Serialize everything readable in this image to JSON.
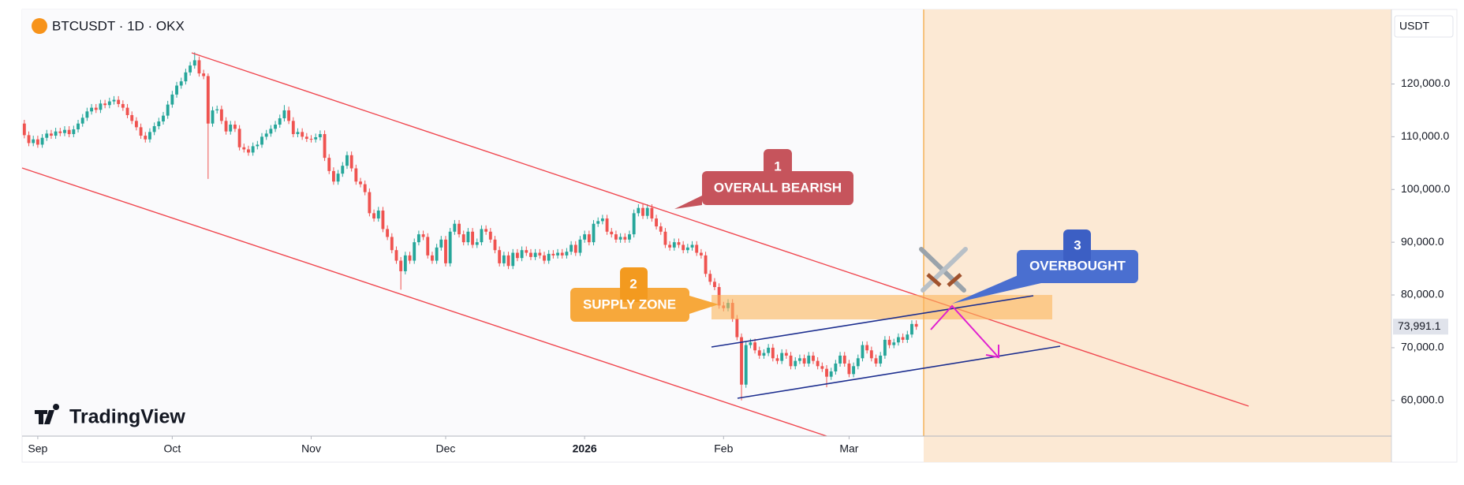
{
  "chart_data": {
    "type": "candlestick",
    "title": "BTCUSDT · 1D · OKX",
    "price_unit": "USDT",
    "watermark": "TradingView",
    "up_color": "#26a69a",
    "down_color": "#ef5350",
    "last_value_label": "73,991.1",
    "annotations": [
      {
        "number": "1",
        "text": "OVERALL BEARISH"
      },
      {
        "number": "2",
        "text": "SUPPLY ZONE"
      },
      {
        "number": "3",
        "text": "OVERBOUGHT"
      }
    ],
    "xlim": [
      -0.5,
      305
    ],
    "ylim": [
      53240,
      134130
    ],
    "xticks": [
      {
        "value": 3,
        "label": "Sep"
      },
      {
        "value": 33,
        "label": "Oct"
      },
      {
        "value": 64,
        "label": "Nov"
      },
      {
        "value": 94,
        "label": "Dec"
      },
      {
        "value": 125,
        "label": "2026"
      },
      {
        "value": 156,
        "label": "Feb"
      },
      {
        "value": 184,
        "label": "Mar"
      }
    ],
    "yticks": [
      {
        "value": 60000,
        "label": "60,000.0"
      },
      {
        "value": 70000,
        "label": "70,000.0"
      },
      {
        "value": 80000,
        "label": "80,000.0"
      },
      {
        "value": 90000,
        "label": "90,000.0"
      },
      {
        "value": 100000,
        "label": "100,000.0"
      },
      {
        "value": 110000,
        "label": "110,000.0"
      },
      {
        "value": 120000,
        "label": "120,000.0"
      }
    ],
    "open": [
      112500,
      110300,
      108800,
      109500,
      108500,
      109800,
      110600,
      110200,
      111000,
      110700,
      111300,
      110500,
      111400,
      112500,
      113600,
      114800,
      115500,
      115100,
      116300,
      116000,
      116700,
      117000,
      116200,
      115500,
      114100,
      113000,
      111800,
      110200,
      109500,
      110900,
      112000,
      112900,
      114000,
      116100,
      118000,
      119700,
      120500,
      122200,
      123500,
      124500,
      122000,
      121500,
      112500,
      115000,
      115200,
      113000,
      111000,
      112300,
      111500,
      108000,
      107600,
      107000,
      108200,
      108500,
      110000,
      110600,
      111500,
      112300,
      113500,
      115000,
      113000,
      110500,
      110900,
      110000,
      109600,
      109500,
      109900,
      110500,
      106000,
      103500,
      101500,
      103000,
      104500,
      106500,
      104000,
      101500,
      101000,
      99500,
      95500,
      94500,
      96000,
      92500,
      91000,
      88500,
      86500,
      84500,
      87500,
      86500,
      90000,
      91500,
      91000,
      87500,
      86500,
      89000,
      90500,
      86000,
      92000,
      93500,
      91500,
      90000,
      92000,
      89500,
      90000,
      92500,
      92000,
      90500,
      88500,
      86000,
      87500,
      85500,
      88000,
      87000,
      88500,
      88000,
      87200,
      88000,
      87500,
      86500,
      87800,
      87500,
      88000,
      87500,
      88200,
      89500,
      88000,
      90500,
      91500,
      90000,
      93500,
      94000,
      94500,
      92000,
      91500,
      90500,
      91000,
      90500,
      91500,
      95500,
      96500,
      95000,
      96500,
      94500,
      93000,
      92000,
      89500,
      89000,
      90000,
      89500,
      88500,
      89000,
      89500,
      88000,
      87500,
      84000,
      82500,
      81500,
      78000,
      77500,
      78500,
      75500,
      72000,
      63000,
      70500,
      71000,
      69500,
      68500,
      69000,
      70000,
      68000,
      67500,
      69000,
      68500,
      66500,
      67500,
      68000,
      67000,
      68500,
      67500,
      66500,
      66000,
      64500,
      65500,
      67000,
      68500,
      67000,
      65000,
      66500,
      68000,
      70500,
      69500,
      68000,
      67000,
      68500,
      71500,
      70500,
      71000,
      72000,
      71500,
      72500,
      74500
    ],
    "high": [
      113200,
      111000,
      110200,
      110200,
      110500,
      111300,
      111300,
      111700,
      111700,
      112000,
      112000,
      112100,
      113200,
      114300,
      115500,
      116200,
      116200,
      117000,
      117000,
      117400,
      117700,
      117700,
      116900,
      116200,
      114800,
      113700,
      112500,
      110900,
      111600,
      112700,
      113600,
      114700,
      116800,
      118700,
      120400,
      121200,
      122900,
      124200,
      126000,
      125200,
      122700,
      122000,
      115700,
      115900,
      115900,
      113700,
      113000,
      113000,
      112200,
      108700,
      108300,
      108900,
      109200,
      110700,
      111300,
      112200,
      113000,
      114200,
      116000,
      115700,
      113700,
      111600,
      111600,
      110700,
      110300,
      110600,
      111200,
      111200,
      106700,
      104200,
      103700,
      105200,
      107200,
      107200,
      104700,
      102200,
      101700,
      100200,
      96200,
      96700,
      96700,
      93200,
      91700,
      89200,
      87200,
      88200,
      88200,
      90700,
      92200,
      92200,
      91700,
      88200,
      89700,
      91200,
      91200,
      92700,
      94200,
      94200,
      92200,
      92700,
      92700,
      90700,
      93200,
      93200,
      92700,
      91200,
      89200,
      88200,
      88200,
      88700,
      88700,
      89200,
      89200,
      88700,
      88700,
      88700,
      88200,
      88500,
      88500,
      88700,
      88700,
      88900,
      90200,
      90200,
      91200,
      92200,
      92200,
      94200,
      94700,
      95200,
      95200,
      92700,
      92200,
      91700,
      91700,
      92200,
      96200,
      97200,
      97200,
      97200,
      97200,
      95200,
      93700,
      92700,
      90200,
      90700,
      90700,
      90200,
      89700,
      90200,
      90200,
      88700,
      88200,
      84700,
      83200,
      82200,
      78700,
      79200,
      79200,
      76200,
      72700,
      71200,
      71700,
      71700,
      70200,
      69700,
      70700,
      70700,
      68700,
      69700,
      69700,
      69200,
      68200,
      68700,
      68700,
      69200,
      69200,
      68200,
      67200,
      66700,
      66200,
      67700,
      69200,
      69200,
      67700,
      67200,
      68700,
      71200,
      71200,
      70200,
      68700,
      69200,
      72200,
      72200,
      71700,
      72700,
      72700,
      73200,
      75200,
      75200
    ],
    "low": [
      109700,
      108200,
      108200,
      107900,
      107900,
      109200,
      109600,
      109600,
      110100,
      110100,
      109900,
      109900,
      110800,
      111900,
      113000,
      114200,
      114500,
      114500,
      115400,
      115400,
      116100,
      115600,
      114900,
      113500,
      112400,
      111200,
      109600,
      108900,
      108900,
      110300,
      111400,
      112300,
      113400,
      115500,
      117400,
      119100,
      119900,
      121600,
      122900,
      121400,
      120900,
      102000,
      111900,
      114400,
      112400,
      110400,
      110400,
      110900,
      107400,
      107000,
      106400,
      106400,
      107600,
      107900,
      109400,
      110000,
      110900,
      111700,
      112900,
      112400,
      109900,
      109900,
      109400,
      109000,
      108900,
      108900,
      109300,
      105400,
      102900,
      100900,
      100900,
      102400,
      103900,
      103400,
      100900,
      100400,
      98900,
      94900,
      93900,
      93900,
      91900,
      90400,
      87900,
      85900,
      81000,
      83900,
      85900,
      85900,
      89400,
      90400,
      86900,
      85900,
      85900,
      88400,
      85400,
      85400,
      91400,
      90900,
      89400,
      89400,
      88900,
      88900,
      89400,
      91400,
      89900,
      87900,
      85400,
      85400,
      84900,
      84900,
      86400,
      86400,
      87400,
      86600,
      86600,
      86900,
      85900,
      85900,
      86900,
      86900,
      86900,
      86900,
      87600,
      87400,
      87400,
      89900,
      89400,
      89400,
      92900,
      93400,
      91400,
      90900,
      89900,
      89900,
      89900,
      89900,
      90900,
      94900,
      94400,
      94400,
      93900,
      92400,
      91400,
      88900,
      88400,
      88400,
      88900,
      87900,
      87900,
      88400,
      87400,
      86900,
      83400,
      81900,
      80900,
      77400,
      76900,
      76900,
      74900,
      71400,
      60000,
      62400,
      69900,
      68900,
      67900,
      67900,
      68400,
      67400,
      66900,
      66900,
      67900,
      65900,
      65900,
      66900,
      66400,
      66400,
      66900,
      65900,
      65400,
      62500,
      63900,
      64900,
      66400,
      66400,
      64400,
      64400,
      65900,
      67400,
      68900,
      67400,
      66400,
      66400,
      67900,
      69900,
      69900,
      70400,
      70900,
      70900,
      71900,
      73400
    ],
    "close": [
      110300,
      108800,
      109500,
      108500,
      109800,
      110600,
      110200,
      111000,
      110700,
      111300,
      110500,
      111400,
      112500,
      113600,
      114800,
      115500,
      115100,
      116300,
      116000,
      116700,
      117000,
      116200,
      115500,
      114100,
      113000,
      111800,
      110200,
      109500,
      110900,
      112000,
      112900,
      114000,
      116100,
      118000,
      119700,
      120500,
      122200,
      123500,
      124500,
      122000,
      121500,
      112500,
      115000,
      115200,
      113000,
      111000,
      112300,
      111500,
      108000,
      107600,
      107000,
      108200,
      108500,
      110000,
      110600,
      111500,
      112300,
      113500,
      115000,
      113000,
      110500,
      110900,
      110000,
      109600,
      109500,
      109900,
      110500,
      106000,
      103500,
      101500,
      103000,
      104500,
      106500,
      104000,
      101500,
      101000,
      99500,
      95500,
      94500,
      96000,
      92500,
      91000,
      88500,
      86500,
      84500,
      87500,
      86500,
      90000,
      91500,
      91000,
      87500,
      86500,
      89000,
      90500,
      86000,
      92000,
      93500,
      91500,
      90000,
      92000,
      89500,
      90000,
      92500,
      92000,
      90500,
      88500,
      86000,
      87500,
      85500,
      88000,
      87000,
      88500,
      88000,
      87200,
      88000,
      87500,
      86500,
      87800,
      87500,
      88000,
      87500,
      88200,
      89500,
      88000,
      90500,
      91500,
      90000,
      93500,
      94000,
      94500,
      92000,
      91500,
      90500,
      91000,
      90500,
      91500,
      95500,
      96500,
      95000,
      96500,
      94500,
      93000,
      92000,
      89500,
      89000,
      90000,
      89500,
      88500,
      89000,
      89500,
      88000,
      87500,
      84000,
      82500,
      81500,
      78000,
      77500,
      78500,
      75500,
      72000,
      63000,
      70500,
      71000,
      69500,
      68500,
      69000,
      70000,
      68000,
      67500,
      69000,
      68500,
      66500,
      67500,
      68000,
      67000,
      68500,
      67500,
      66500,
      66000,
      64500,
      65500,
      67000,
      68500,
      67000,
      65000,
      66500,
      68000,
      70500,
      69500,
      68000,
      67000,
      68500,
      71500,
      70500,
      71000,
      72000,
      71500,
      72500,
      74500,
      73991.1
    ]
  }
}
